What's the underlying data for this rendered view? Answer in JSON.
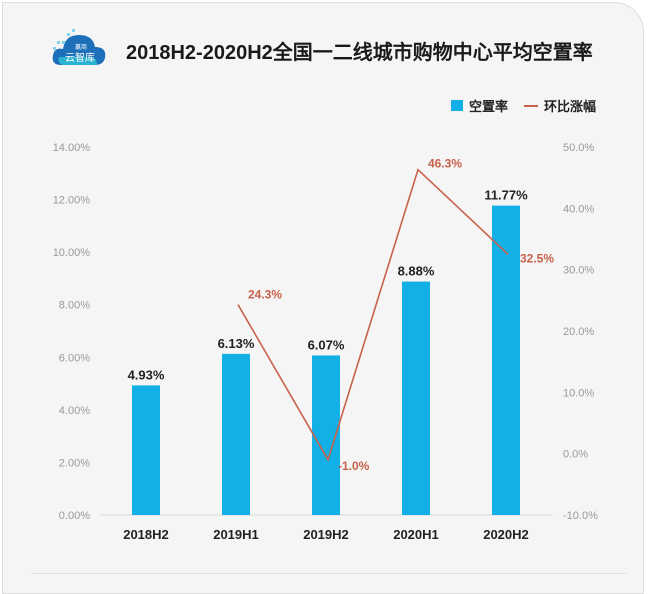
{
  "logo": {
    "text_top": "赢商",
    "text_main": "云智库"
  },
  "chart_data": {
    "type": "bar+line",
    "title": "2018H2-2020H2全国一二线城市购物中心平均空置率",
    "categories": [
      "2018H2",
      "2019H1",
      "2019H2",
      "2020H1",
      "2020H2"
    ],
    "series": [
      {
        "name": "空置率",
        "type": "bar",
        "axis": "left",
        "values": [
          4.93,
          6.13,
          6.07,
          8.88,
          11.77
        ],
        "labels": [
          "4.93%",
          "6.13%",
          "6.07%",
          "8.88%",
          "11.77%"
        ],
        "color": "#12b0e6"
      },
      {
        "name": "环比涨幅",
        "type": "line",
        "axis": "right",
        "values": [
          null,
          24.3,
          -1.0,
          46.3,
          32.5
        ],
        "labels": [
          "",
          "24.3%",
          "-1.0%",
          "46.3%",
          "32.5%"
        ],
        "color": "#c8614a"
      }
    ],
    "left_axis": {
      "ylim": [
        0,
        14
      ],
      "ticks": [
        "0.00%",
        "2.00%",
        "4.00%",
        "6.00%",
        "8.00%",
        "10.00%",
        "12.00%",
        "14.00%"
      ]
    },
    "right_axis": {
      "ylim": [
        -10,
        50
      ],
      "ticks": [
        "-10.0%",
        "0.0%",
        "10.0%",
        "20.0%",
        "30.0%",
        "40.0%",
        "50.0%"
      ]
    },
    "legend": "top-right",
    "grid": false
  }
}
